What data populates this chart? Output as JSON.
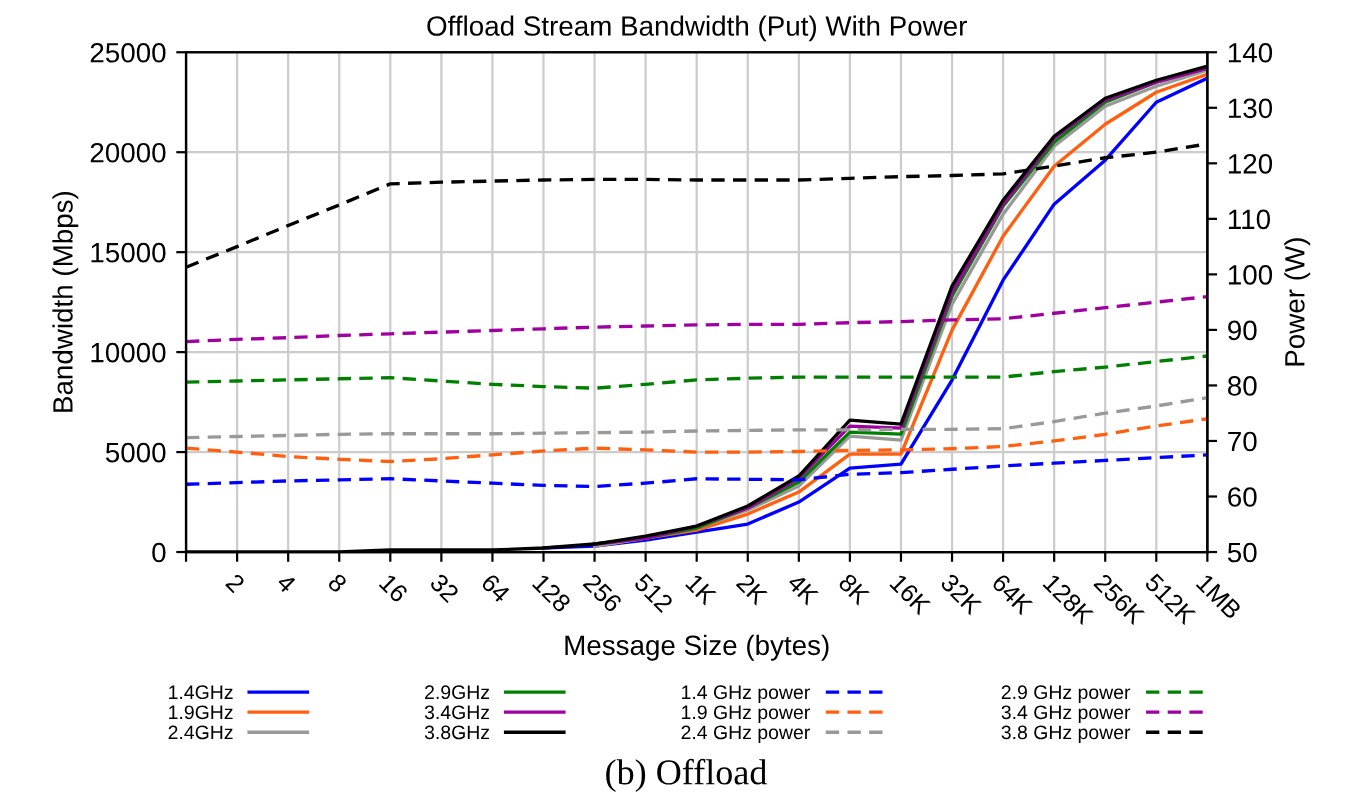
{
  "chart_data": {
    "type": "line",
    "title": "Offload Stream Bandwidth (Put) With Power",
    "xlabel": "Message Size (bytes)",
    "ylabel": "Bandwidth (Mbps)",
    "y2label": "Power (W)",
    "categories": [
      null,
      "2",
      "4",
      "8",
      "16",
      "32",
      "64",
      "128",
      "256",
      "512",
      "1K",
      "2K",
      "4K",
      "8K",
      "16K",
      "32K",
      "64K",
      "128K",
      "256K",
      "512K",
      "1MB"
    ],
    "ylim": [
      0,
      25000
    ],
    "yticks": [
      0,
      5000,
      10000,
      15000,
      20000,
      25000
    ],
    "y2lim": [
      50,
      140
    ],
    "y2ticks": [
      50,
      60,
      70,
      80,
      90,
      100,
      110,
      120,
      130,
      140
    ],
    "grid": true,
    "legend": "bottom",
    "marker": "none",
    "annotations": [
      "(b) Offload"
    ],
    "series": [
      {
        "name": "1.4GHz",
        "color": "#0000ff",
        "line_style": "solid",
        "values": [
          null,
          null,
          null,
          null,
          null,
          null,
          null,
          200,
          300,
          600,
          1000,
          1400,
          2500,
          4200,
          4400,
          8600,
          13600,
          17400,
          19600,
          22500,
          23700
        ]
      },
      {
        "name": "1.9GHz",
        "color": "#ff6010",
        "line_style": "solid",
        "values": [
          null,
          null,
          null,
          null,
          null,
          null,
          null,
          null,
          300,
          700,
          1100,
          1900,
          3000,
          4900,
          4900,
          11100,
          15800,
          19300,
          21400,
          23000,
          23900
        ]
      },
      {
        "name": "2.4GHz",
        "color": "#999999",
        "line_style": "solid",
        "values": [
          null,
          null,
          null,
          null,
          null,
          null,
          null,
          null,
          300,
          700,
          1200,
          2100,
          3300,
          5800,
          5600,
          12400,
          16900,
          20300,
          22300,
          23300,
          24100
        ]
      },
      {
        "name": "2.9GHz",
        "color": "#008000",
        "line_style": "solid",
        "values": [
          null,
          null,
          null,
          null,
          null,
          null,
          null,
          null,
          400,
          700,
          1200,
          2200,
          3500,
          6000,
          5900,
          12800,
          17300,
          20500,
          22500,
          23500,
          24200
        ]
      },
      {
        "name": "3.4GHz",
        "color": "#a000a0",
        "line_style": "solid",
        "values": [
          null,
          null,
          null,
          null,
          null,
          null,
          null,
          null,
          400,
          700,
          1300,
          2200,
          3700,
          6300,
          6200,
          13000,
          17400,
          20700,
          22600,
          23500,
          24200
        ]
      },
      {
        "name": "3.8GHz",
        "color": "#000000",
        "line_style": "solid",
        "values": [
          0,
          0,
          0,
          0,
          100,
          100,
          100,
          200,
          400,
          800,
          1300,
          2300,
          3800,
          6600,
          6400,
          13300,
          17600,
          20800,
          22700,
          23600,
          24300
        ]
      },
      {
        "name": "1.4 GHz power",
        "color": "#0000ff",
        "line_style": "dashed",
        "axis": "y2",
        "values": [
          62.2,
          62.5,
          62.8,
          63.0,
          63.2,
          62.8,
          62.4,
          62.0,
          61.8,
          62.4,
          63.2,
          63.1,
          63.0,
          64.0,
          64.3,
          64.9,
          65.5,
          66.0,
          66.5,
          67.0,
          67.5
        ]
      },
      {
        "name": "1.9 GHz power",
        "color": "#ff6010",
        "line_style": "dashed",
        "axis": "y2",
        "values": [
          68.7,
          68.0,
          67.2,
          66.7,
          66.3,
          66.8,
          67.5,
          68.2,
          68.7,
          68.4,
          68.0,
          68.0,
          68.1,
          68.3,
          68.4,
          68.6,
          69.0,
          70.0,
          71.2,
          72.7,
          74.0
        ]
      },
      {
        "name": "2.4 GHz power",
        "color": "#999999",
        "line_style": "dashed",
        "axis": "y2",
        "values": [
          70.6,
          70.8,
          71.0,
          71.2,
          71.3,
          71.3,
          71.3,
          71.4,
          71.5,
          71.6,
          71.8,
          71.9,
          72.0,
          72.0,
          72.1,
          72.1,
          72.2,
          73.5,
          75.0,
          76.3,
          77.8
        ]
      },
      {
        "name": "2.9 GHz power",
        "color": "#008000",
        "line_style": "dashed",
        "axis": "y2",
        "values": [
          80.6,
          80.8,
          81.0,
          81.2,
          81.4,
          80.8,
          80.2,
          79.8,
          79.5,
          80.2,
          81.0,
          81.3,
          81.5,
          81.5,
          81.5,
          81.5,
          81.5,
          82.5,
          83.3,
          84.3,
          85.3
        ]
      },
      {
        "name": "3.4 GHz power",
        "color": "#a000a0",
        "line_style": "dashed",
        "axis": "y2",
        "values": [
          87.9,
          88.3,
          88.6,
          89.0,
          89.3,
          89.6,
          89.9,
          90.2,
          90.5,
          90.7,
          90.9,
          91.0,
          91.0,
          91.3,
          91.5,
          91.8,
          92.0,
          93.0,
          94.0,
          95.0,
          96.0
        ]
      },
      {
        "name": "3.8 GHz power",
        "color": "#000000",
        "line_style": "dashed",
        "axis": "y2",
        "values": [
          101.3,
          105.0,
          108.8,
          112.5,
          116.3,
          116.6,
          116.8,
          117.0,
          117.1,
          117.1,
          117.0,
          117.0,
          117.0,
          117.3,
          117.6,
          117.8,
          118.1,
          119.5,
          121.0,
          122.0,
          123.5
        ]
      }
    ]
  }
}
